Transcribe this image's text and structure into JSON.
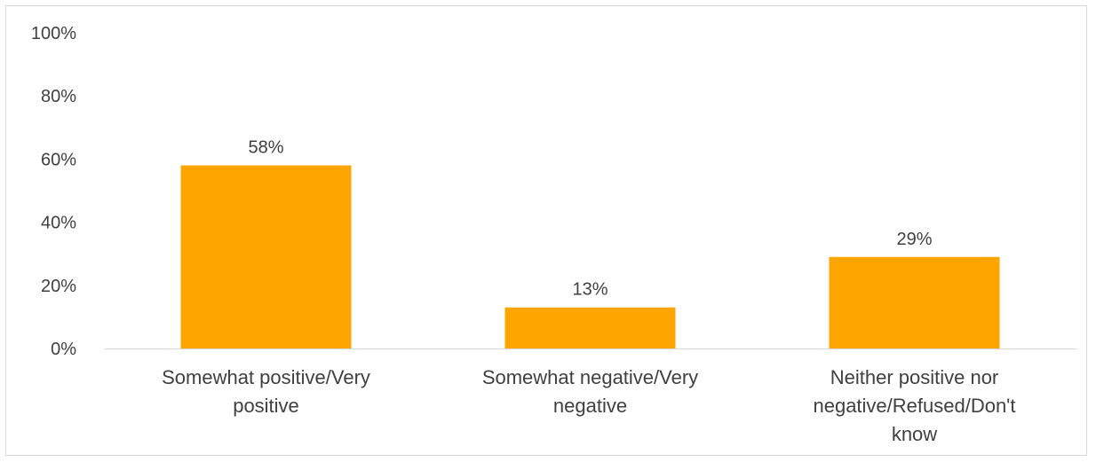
{
  "chart_data": {
    "type": "bar",
    "categories": [
      [
        "Somewhat positive/Very",
        "positive"
      ],
      [
        "Somewhat negative/Very",
        "negative"
      ],
      [
        "Neither positive nor",
        "negative/Refused/Don't",
        "know"
      ]
    ],
    "values": [
      58,
      13,
      29
    ],
    "data_labels": [
      "58%",
      "13%",
      "29%"
    ],
    "y_ticks": [
      "0%",
      "20%",
      "40%",
      "60%",
      "80%",
      "100%"
    ],
    "ylim": [
      0,
      100
    ],
    "grid": false,
    "bar_color": "#FFA500",
    "axis_color": "#d9d9d9",
    "title": "",
    "xlabel": "",
    "ylabel": ""
  }
}
